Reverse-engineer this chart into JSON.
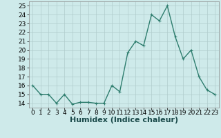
{
  "x": [
    0,
    1,
    2,
    3,
    4,
    5,
    6,
    7,
    8,
    9,
    10,
    11,
    12,
    13,
    14,
    15,
    16,
    17,
    18,
    19,
    20,
    21,
    22,
    23
  ],
  "y": [
    16,
    15,
    15,
    14,
    15,
    13.9,
    14.1,
    14.1,
    14,
    14,
    16,
    15.3,
    19.7,
    21,
    20.5,
    24,
    23.3,
    25,
    21.5,
    19,
    20,
    17,
    15.5,
    15
  ],
  "line_color": "#2e7d6e",
  "marker_color": "#2e7d6e",
  "bg_color": "#ceeaea",
  "grid_color": "#b0cccc",
  "xlabel": "Humidex (Indice chaleur)",
  "ylim": [
    13.5,
    25.5
  ],
  "xlim": [
    -0.5,
    23.5
  ],
  "yticks": [
    14,
    15,
    16,
    17,
    18,
    19,
    20,
    21,
    22,
    23,
    24,
    25
  ],
  "xtick_labels": [
    "0",
    "1",
    "2",
    "3",
    "4",
    "5",
    "6",
    "7",
    "8",
    "9",
    "10",
    "11",
    "12",
    "13",
    "14",
    "15",
    "16",
    "17",
    "18",
    "19",
    "20",
    "21",
    "22",
    "23"
  ],
  "xlabel_fontsize": 8,
  "tick_fontsize": 6.5,
  "line_width": 1.0,
  "marker_size": 2.5
}
